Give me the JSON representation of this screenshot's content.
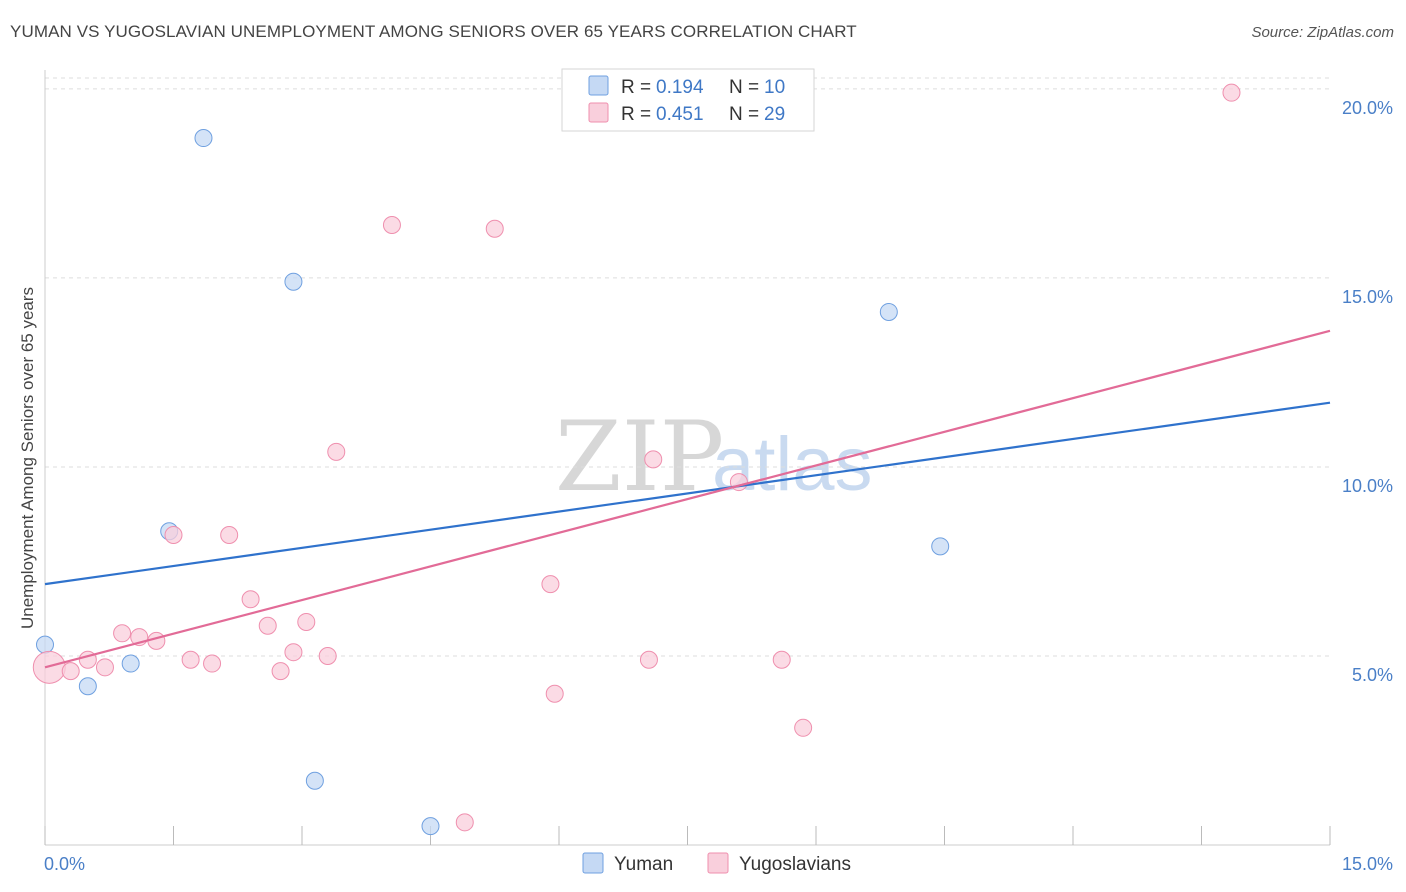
{
  "title": "YUMAN VS YUGOSLAVIAN UNEMPLOYMENT AMONG SENIORS OVER 65 YEARS CORRELATION CHART",
  "source": "Source: ZipAtlas.com",
  "watermark": {
    "zip": "ZIP",
    "atlas": "atlas"
  },
  "colors": {
    "yuman": "#6fa0e0",
    "yuman_fill": "#c5d9f4",
    "yugo": "#ef8fae",
    "yugo_fill": "#f9cfdc",
    "yuman_line": "#2f72cc",
    "yugo_line": "#e26b97"
  },
  "legend": {
    "r_label": "R =",
    "n_label": "N =",
    "entries": [
      {
        "name": "Yuman",
        "r": "0.194",
        "n": "10"
      },
      {
        "name": "Yugoslavians",
        "r": "0.451",
        "n": "29"
      }
    ]
  },
  "chart_data": {
    "type": "scatter",
    "title": "YUMAN VS YUGOSLAVIAN UNEMPLOYMENT AMONG SENIORS OVER 65 YEARS CORRELATION CHART",
    "xlabel": "",
    "ylabel": "Unemployment Among Seniors over 65 years",
    "xlim": [
      0,
      15
    ],
    "ylim": [
      0,
      20.5
    ],
    "x_tick_labels": [
      "0.0%",
      "15.0%"
    ],
    "y_ticks": [
      5,
      10,
      15,
      20
    ],
    "y_tick_labels": [
      "5.0%",
      "10.0%",
      "15.0%",
      "20.0%"
    ],
    "series": [
      {
        "name": "Yuman",
        "points": [
          [
            0.0,
            5.3
          ],
          [
            0.5,
            4.2
          ],
          [
            1.0,
            4.8
          ],
          [
            1.45,
            8.3
          ],
          [
            1.85,
            18.7
          ],
          [
            2.9,
            14.9
          ],
          [
            3.15,
            1.7
          ],
          [
            4.5,
            0.5
          ],
          [
            9.85,
            14.1
          ],
          [
            10.45,
            7.9
          ]
        ],
        "trend": [
          [
            0.0,
            6.9
          ],
          [
            15.0,
            11.7
          ]
        ]
      },
      {
        "name": "Yugoslavians",
        "points": [
          [
            0.05,
            4.7
          ],
          [
            0.3,
            4.6
          ],
          [
            0.5,
            4.9
          ],
          [
            0.7,
            4.7
          ],
          [
            0.9,
            5.6
          ],
          [
            1.1,
            5.5
          ],
          [
            1.3,
            5.4
          ],
          [
            1.5,
            8.2
          ],
          [
            1.7,
            4.9
          ],
          [
            1.95,
            4.8
          ],
          [
            2.15,
            8.2
          ],
          [
            2.4,
            6.5
          ],
          [
            2.6,
            5.8
          ],
          [
            2.75,
            4.6
          ],
          [
            2.9,
            5.1
          ],
          [
            3.05,
            5.9
          ],
          [
            3.3,
            5.0
          ],
          [
            3.4,
            10.4
          ],
          [
            4.05,
            16.4
          ],
          [
            4.9,
            0.6
          ],
          [
            5.25,
            16.3
          ],
          [
            5.9,
            6.9
          ],
          [
            5.95,
            4.0
          ],
          [
            7.05,
            4.9
          ],
          [
            7.1,
            10.2
          ],
          [
            8.1,
            9.6
          ],
          [
            8.6,
            4.9
          ],
          [
            8.85,
            3.1
          ],
          [
            13.85,
            19.9
          ]
        ],
        "trend": [
          [
            0.0,
            4.7
          ],
          [
            15.0,
            13.6
          ]
        ]
      }
    ]
  }
}
